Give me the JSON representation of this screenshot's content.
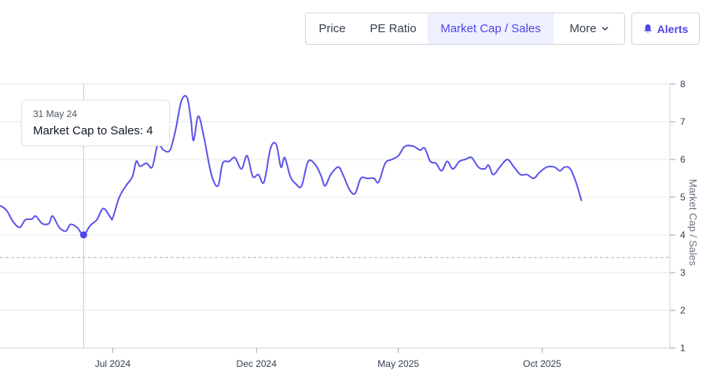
{
  "toolbar": {
    "tabs": [
      {
        "label": "Price",
        "active": false
      },
      {
        "label": "PE Ratio",
        "active": false
      },
      {
        "label": "Market Cap / Sales",
        "active": true
      },
      {
        "label": "More",
        "active": false
      }
    ],
    "more_icon": "chevron-down-icon",
    "alerts": {
      "label": "Alerts",
      "icon": "bell-icon"
    }
  },
  "tooltip": {
    "date": "31 May 24",
    "text": "Market Cap to Sales: 4"
  },
  "colors": {
    "accent": "#4f46e5",
    "line": "#5b54e8",
    "active_tab_bg": "#eef0fe",
    "grid": "#e5e7eb",
    "reference_line": "#b5b5b5"
  },
  "chart_data": {
    "type": "line",
    "ylabel": "Market Cap / Sales",
    "yaxis_position": "right",
    "ylim": [
      1,
      8
    ],
    "yticks": [
      1,
      2,
      3,
      4,
      5,
      6,
      7,
      8
    ],
    "xlim": [
      "2024-03-03",
      "2026-02-14"
    ],
    "xticks": [
      {
        "date": "2024-07-01",
        "label": "Jul 2024"
      },
      {
        "date": "2024-12-01",
        "label": "Dec 2024"
      },
      {
        "date": "2025-05-01",
        "label": "May 2025"
      },
      {
        "date": "2025-10-01",
        "label": "Oct 2025"
      }
    ],
    "grid": true,
    "reference_line": 3.4,
    "crosshair_date": "2024-05-31",
    "highlight": {
      "date": "2024-05-31",
      "value": 4
    },
    "series": [
      {
        "points": [
          [
            "2024-03-03",
            4.78
          ],
          [
            "2024-03-10",
            4.65
          ],
          [
            "2024-03-17",
            4.35
          ],
          [
            "2024-03-24",
            4.2
          ],
          [
            "2024-03-30",
            4.4
          ],
          [
            "2024-04-06",
            4.42
          ],
          [
            "2024-04-10",
            4.5
          ],
          [
            "2024-04-17",
            4.3
          ],
          [
            "2024-04-24",
            4.3
          ],
          [
            "2024-04-28",
            4.5
          ],
          [
            "2024-05-05",
            4.2
          ],
          [
            "2024-05-12",
            4.1
          ],
          [
            "2024-05-17",
            4.28
          ],
          [
            "2024-05-24",
            4.2
          ],
          [
            "2024-05-31",
            4.0
          ],
          [
            "2024-06-07",
            4.25
          ],
          [
            "2024-06-14",
            4.4
          ],
          [
            "2024-06-21",
            4.7
          ],
          [
            "2024-06-29",
            4.45
          ],
          [
            "2024-07-01",
            4.45
          ],
          [
            "2024-07-08",
            5.0
          ],
          [
            "2024-07-15",
            5.3
          ],
          [
            "2024-07-22",
            5.55
          ],
          [
            "2024-07-26",
            5.95
          ],
          [
            "2024-07-30",
            5.82
          ],
          [
            "2024-08-06",
            5.9
          ],
          [
            "2024-08-12",
            5.8
          ],
          [
            "2024-08-18",
            6.4
          ],
          [
            "2024-08-24",
            6.25
          ],
          [
            "2024-08-31",
            6.25
          ],
          [
            "2024-09-06",
            6.8
          ],
          [
            "2024-09-12",
            7.55
          ],
          [
            "2024-09-18",
            7.65
          ],
          [
            "2024-09-22",
            7.1
          ],
          [
            "2024-09-25",
            6.5
          ],
          [
            "2024-09-30",
            7.15
          ],
          [
            "2024-10-06",
            6.6
          ],
          [
            "2024-10-14",
            5.6
          ],
          [
            "2024-10-21",
            5.3
          ],
          [
            "2024-10-26",
            5.9
          ],
          [
            "2024-11-02",
            5.95
          ],
          [
            "2024-11-08",
            6.05
          ],
          [
            "2024-11-15",
            5.75
          ],
          [
            "2024-11-21",
            6.1
          ],
          [
            "2024-11-27",
            5.55
          ],
          [
            "2024-12-03",
            5.6
          ],
          [
            "2024-12-09",
            5.4
          ],
          [
            "2024-12-16",
            6.3
          ],
          [
            "2024-12-22",
            6.4
          ],
          [
            "2024-12-27",
            5.8
          ],
          [
            "2024-12-31",
            6.05
          ],
          [
            "2025-01-06",
            5.55
          ],
          [
            "2025-01-12",
            5.35
          ],
          [
            "2025-01-18",
            5.3
          ],
          [
            "2025-01-25",
            5.95
          ],
          [
            "2025-02-02",
            5.85
          ],
          [
            "2025-02-08",
            5.55
          ],
          [
            "2025-02-12",
            5.3
          ],
          [
            "2025-02-18",
            5.6
          ],
          [
            "2025-02-26",
            5.8
          ],
          [
            "2025-03-03",
            5.6
          ],
          [
            "2025-03-10",
            5.2
          ],
          [
            "2025-03-16",
            5.1
          ],
          [
            "2025-03-22",
            5.5
          ],
          [
            "2025-03-29",
            5.5
          ],
          [
            "2025-04-05",
            5.5
          ],
          [
            "2025-04-10",
            5.4
          ],
          [
            "2025-04-17",
            5.9
          ],
          [
            "2025-04-24",
            6.0
          ],
          [
            "2025-05-01",
            6.1
          ],
          [
            "2025-05-08",
            6.35
          ],
          [
            "2025-05-17",
            6.35
          ],
          [
            "2025-05-24",
            6.25
          ],
          [
            "2025-05-29",
            6.3
          ],
          [
            "2025-06-04",
            5.95
          ],
          [
            "2025-06-10",
            5.9
          ],
          [
            "2025-06-16",
            5.7
          ],
          [
            "2025-06-22",
            5.95
          ],
          [
            "2025-06-28",
            5.75
          ],
          [
            "2025-07-05",
            5.95
          ],
          [
            "2025-07-11",
            6.0
          ],
          [
            "2025-07-18",
            6.05
          ],
          [
            "2025-07-25",
            5.8
          ],
          [
            "2025-08-01",
            5.75
          ],
          [
            "2025-08-05",
            5.85
          ],
          [
            "2025-08-10",
            5.6
          ],
          [
            "2025-08-17",
            5.8
          ],
          [
            "2025-08-25",
            6.0
          ],
          [
            "2025-09-01",
            5.8
          ],
          [
            "2025-09-08",
            5.6
          ],
          [
            "2025-09-15",
            5.6
          ],
          [
            "2025-09-22",
            5.5
          ],
          [
            "2025-09-28",
            5.65
          ],
          [
            "2025-10-06",
            5.8
          ],
          [
            "2025-10-14",
            5.8
          ],
          [
            "2025-10-20",
            5.7
          ],
          [
            "2025-10-25",
            5.8
          ],
          [
            "2025-10-31",
            5.75
          ],
          [
            "2025-11-06",
            5.4
          ],
          [
            "2025-11-12",
            4.9
          ]
        ]
      }
    ]
  }
}
